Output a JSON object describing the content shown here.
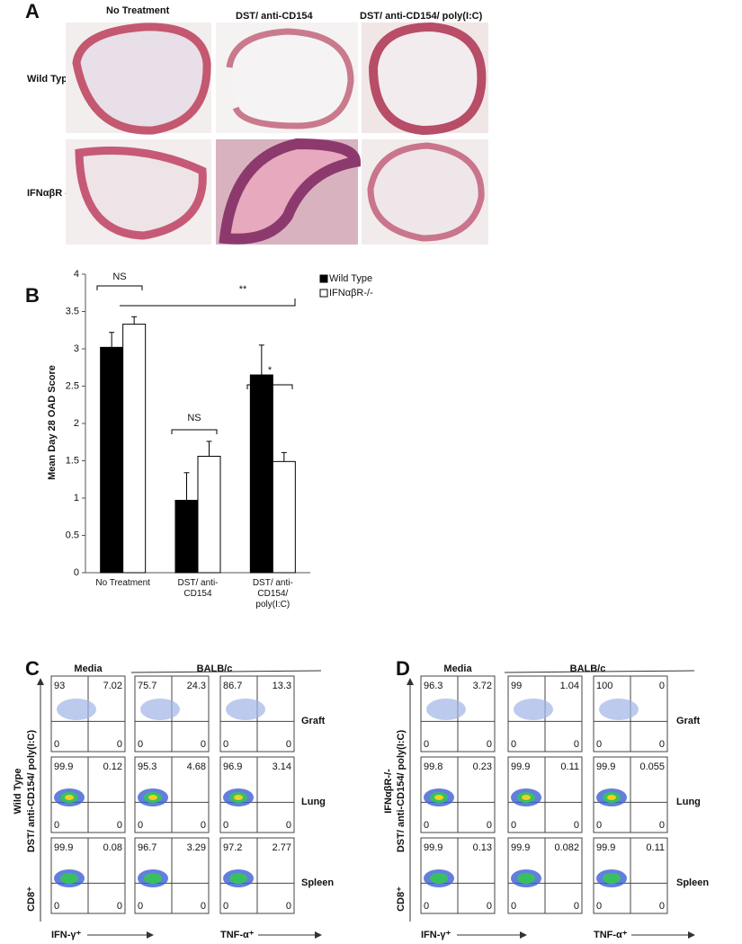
{
  "panel_a": {
    "label": "A",
    "columns": [
      "No Treatment",
      "DST/ anti-CD154",
      "DST/ anti-CD154/ poly(I:C)"
    ],
    "rows": [
      "Wild Type",
      "IFNαβR -/-"
    ]
  },
  "chart_data": {
    "type": "bar",
    "panel_label": "B",
    "categories": [
      "No Treatment",
      "DST/ anti-CD154",
      "DST/ anti-CD154/ poly(I:C)"
    ],
    "series": [
      {
        "name": "Wild Type",
        "color": "#000000",
        "values": [
          3.02,
          0.97,
          2.65
        ],
        "errors": [
          0.2,
          0.37,
          0.4
        ]
      },
      {
        "name": "IFNαβR-/-",
        "color": "#ffffff",
        "values": [
          3.33,
          1.56,
          1.49
        ],
        "errors": [
          0.1,
          0.2,
          0.12
        ]
      }
    ],
    "ylim": [
      0,
      4
    ],
    "yticks": [
      0,
      0.5,
      1,
      1.5,
      2,
      2.5,
      3,
      3.5,
      4
    ],
    "y_label": "Mean Day 28 OAD Score",
    "annotations": [
      "NS",
      "**",
      "NS",
      "*"
    ]
  },
  "panel_c": {
    "label": "C",
    "columns": [
      "Media",
      "BALB/c"
    ],
    "y_label": "CD8⁺",
    "group_label": [
      "Wild Type",
      "DST/ anti-CD154/ poly(I:C)"
    ],
    "x_labels": [
      "IFN-γ⁺",
      "TNF-α⁺"
    ],
    "rows": [
      {
        "name": "Graft",
        "quadrants": [
          [
            93,
            7.02,
            0,
            0
          ],
          [
            75.7,
            24.3,
            0,
            0
          ],
          [
            86.7,
            13.3,
            0,
            0
          ]
        ]
      },
      {
        "name": "Lung",
        "quadrants": [
          [
            99.9,
            0.12,
            0,
            0
          ],
          [
            95.3,
            4.68,
            0,
            0
          ],
          [
            96.9,
            3.14,
            0,
            0
          ]
        ]
      },
      {
        "name": "Spleen",
        "quadrants": [
          [
            99.9,
            0.08,
            0,
            0
          ],
          [
            96.7,
            3.29,
            0,
            0
          ],
          [
            97.2,
            2.77,
            0,
            0
          ]
        ]
      }
    ]
  },
  "panel_d": {
    "label": "D",
    "columns": [
      "Media",
      "BALB/c"
    ],
    "y_label": "CD8⁺",
    "group_label": [
      "IFNαβR-/-",
      "DST/ anti-CD154/ poly(I:C)"
    ],
    "x_labels": [
      "IFN-γ⁺",
      "TNF-α⁺"
    ],
    "rows": [
      {
        "name": "Graft",
        "quadrants": [
          [
            96.3,
            3.72,
            0,
            0
          ],
          [
            99,
            1.04,
            0,
            0
          ],
          [
            100,
            0,
            0,
            0
          ]
        ]
      },
      {
        "name": "Lung",
        "quadrants": [
          [
            99.8,
            0.23,
            0,
            0
          ],
          [
            99.9,
            0.11,
            0,
            0
          ],
          [
            99.9,
            0.055,
            0,
            0
          ]
        ]
      },
      {
        "name": "Spleen",
        "quadrants": [
          [
            99.9,
            0.13,
            0,
            0
          ],
          [
            99.9,
            0.082,
            0,
            0
          ],
          [
            99.9,
            0.11,
            0,
            0
          ]
        ]
      }
    ]
  }
}
